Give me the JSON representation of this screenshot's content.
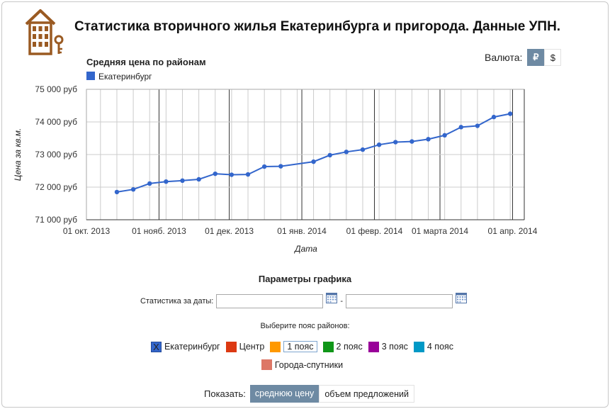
{
  "header": {
    "title": "Статистика вторичного жилья Екатеринбурга и пригорода. Данные УПН."
  },
  "currency": {
    "label": "Валюта:",
    "options": [
      "₽",
      "$"
    ],
    "selected": "₽"
  },
  "chart_data": {
    "type": "line",
    "title": "Средняя цена по районам",
    "xlabel": "Дата",
    "ylabel": "Цена за кв.м.",
    "legend": [
      "Екатеринбург"
    ],
    "legend_position": "top-left",
    "grid": true,
    "ylim": [
      71000,
      75000
    ],
    "xlim": [
      "2013-10-01",
      "2014-04-06"
    ],
    "y_ticks": [
      {
        "value": 75000,
        "label": "75 000 руб"
      },
      {
        "value": 74000,
        "label": "74 000 руб"
      },
      {
        "value": 73000,
        "label": "73 000 руб"
      },
      {
        "value": 72000,
        "label": "72 000 руб"
      },
      {
        "value": 71000,
        "label": "71 000 руб"
      }
    ],
    "x_ticks": [
      {
        "date": "2013-10-01",
        "label": "01 окт. 2013"
      },
      {
        "date": "2013-11-01",
        "label": "01 нояб. 2013"
      },
      {
        "date": "2013-12-01",
        "label": "01 дек. 2013"
      },
      {
        "date": "2014-01-01",
        "label": "01 янв. 2014"
      },
      {
        "date": "2014-02-01",
        "label": "01 февр. 2014"
      },
      {
        "date": "2014-03-01",
        "label": "01 марта 2014"
      },
      {
        "date": "2014-04-01",
        "label": "01 апр. 2014"
      }
    ],
    "series": [
      {
        "name": "Екатеринбург",
        "color": "#3366cc",
        "points": [
          {
            "x": "2013-10-14",
            "y": 71850
          },
          {
            "x": "2013-10-21",
            "y": 71930
          },
          {
            "x": "2013-10-28",
            "y": 72110
          },
          {
            "x": "2013-11-04",
            "y": 72170
          },
          {
            "x": "2013-11-11",
            "y": 72200
          },
          {
            "x": "2013-11-18",
            "y": 72240
          },
          {
            "x": "2013-11-25",
            "y": 72410
          },
          {
            "x": "2013-12-02",
            "y": 72380
          },
          {
            "x": "2013-12-09",
            "y": 72390
          },
          {
            "x": "2013-12-16",
            "y": 72630
          },
          {
            "x": "2013-12-23",
            "y": 72640
          },
          {
            "x": "2014-01-06",
            "y": 72780
          },
          {
            "x": "2014-01-13",
            "y": 72980
          },
          {
            "x": "2014-01-20",
            "y": 73080
          },
          {
            "x": "2014-01-27",
            "y": 73150
          },
          {
            "x": "2014-02-03",
            "y": 73300
          },
          {
            "x": "2014-02-10",
            "y": 73380
          },
          {
            "x": "2014-02-17",
            "y": 73400
          },
          {
            "x": "2014-02-24",
            "y": 73470
          },
          {
            "x": "2014-03-03",
            "y": 73590
          },
          {
            "x": "2014-03-10",
            "y": 73840
          },
          {
            "x": "2014-03-17",
            "y": 73880
          },
          {
            "x": "2014-03-24",
            "y": 74150
          },
          {
            "x": "2014-03-31",
            "y": 74250
          }
        ]
      }
    ]
  },
  "params": {
    "title": "Параметры графика",
    "dates_label": "Статистика за даты:",
    "date_from": "",
    "date_to": "",
    "dash": "-",
    "zone_title": "Выберите пояс районов:",
    "zones": [
      {
        "label": "Екатеринбург",
        "color": "#3366cc",
        "checked": true,
        "mark": "X"
      },
      {
        "label": "Центр",
        "color": "#dc3912",
        "checked": false,
        "mark": ""
      },
      {
        "label": "1 пояс",
        "color": "#ff9900",
        "checked": false,
        "mark": ""
      },
      {
        "label": "2 пояс",
        "color": "#109618",
        "checked": false,
        "mark": ""
      },
      {
        "label": "3 пояс",
        "color": "#990099",
        "checked": false,
        "mark": ""
      },
      {
        "label": "4 пояс",
        "color": "#0099c6",
        "checked": false,
        "mark": ""
      },
      {
        "label": "Города-спутники",
        "color": "#dd7766",
        "checked": false,
        "mark": ""
      }
    ]
  },
  "show": {
    "label": "Показать:",
    "options": [
      "среднюю цену",
      "объем предложений"
    ],
    "selected": "среднюю цену"
  }
}
